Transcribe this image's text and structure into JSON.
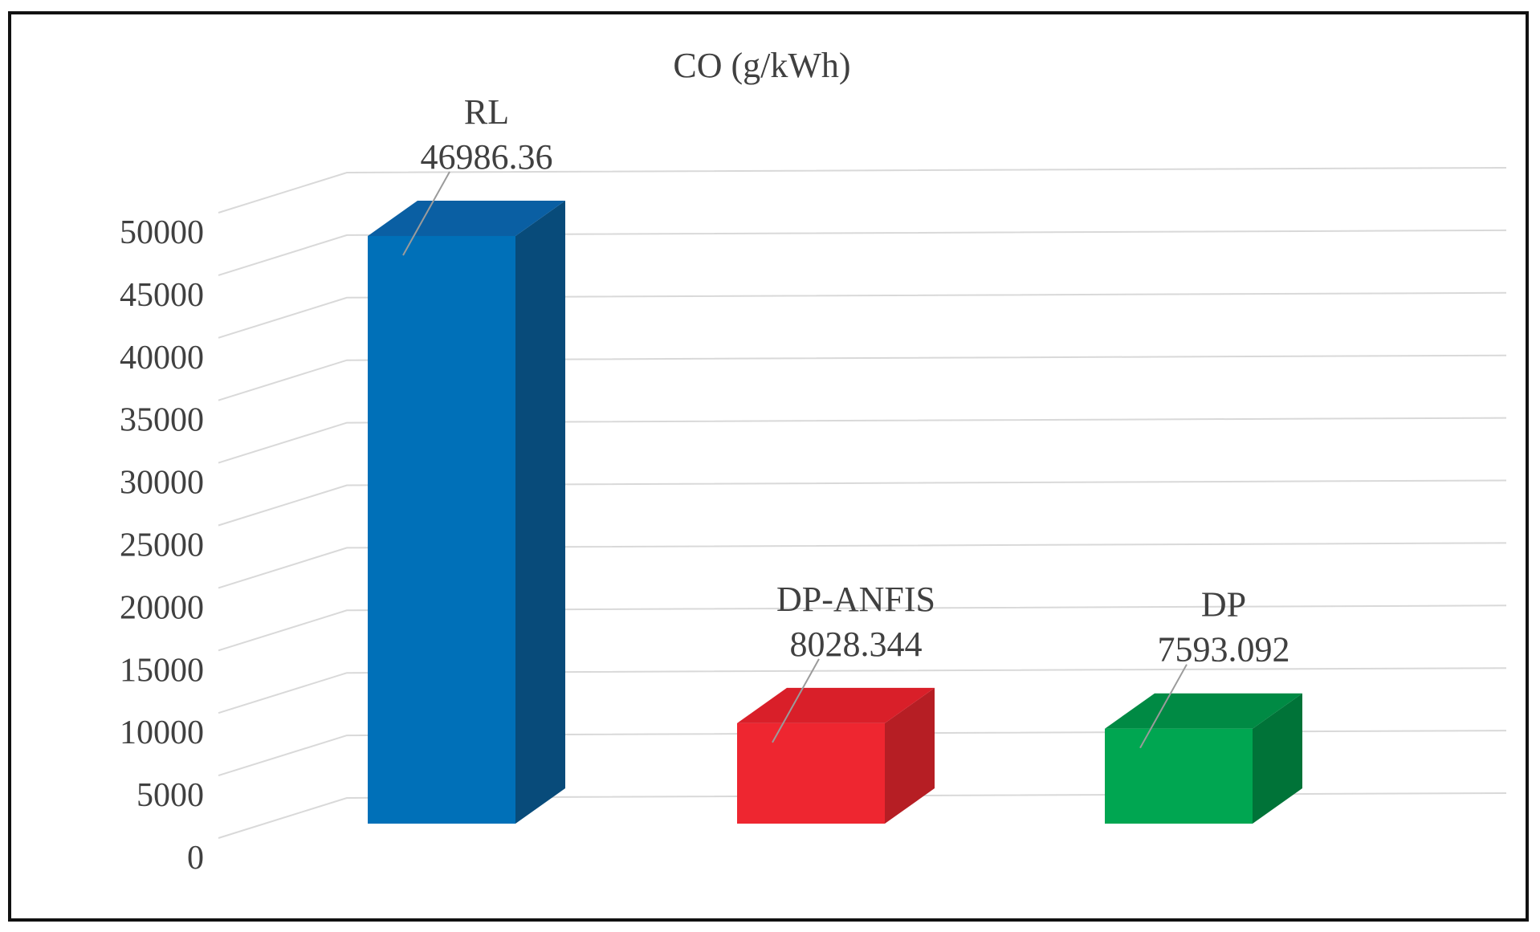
{
  "chart_data": {
    "type": "bar",
    "title": "CO (g/kWh)",
    "xlabel": "",
    "ylabel": "",
    "categories": [
      "RL",
      "DP-ANFIS",
      "DP"
    ],
    "values": [
      46986.36,
      8028.344,
      7593.092
    ],
    "value_labels": [
      "46986.36",
      "8028.344",
      "7593.092"
    ],
    "colors": {
      "front": [
        "#0070b8",
        "#ee2630",
        "#00a651"
      ],
      "side": [
        "#084b7a",
        "#b61e24",
        "#007338"
      ],
      "top": [
        "#0a5fa3",
        "#d91f29",
        "#008a44"
      ]
    },
    "ylim": [
      0,
      50000
    ],
    "y_ticks": [
      "0",
      "5000",
      "10000",
      "15000",
      "20000",
      "25000",
      "30000",
      "35000",
      "40000",
      "45000",
      "50000"
    ],
    "grid": true,
    "legend": "none",
    "style": "3d-column"
  }
}
